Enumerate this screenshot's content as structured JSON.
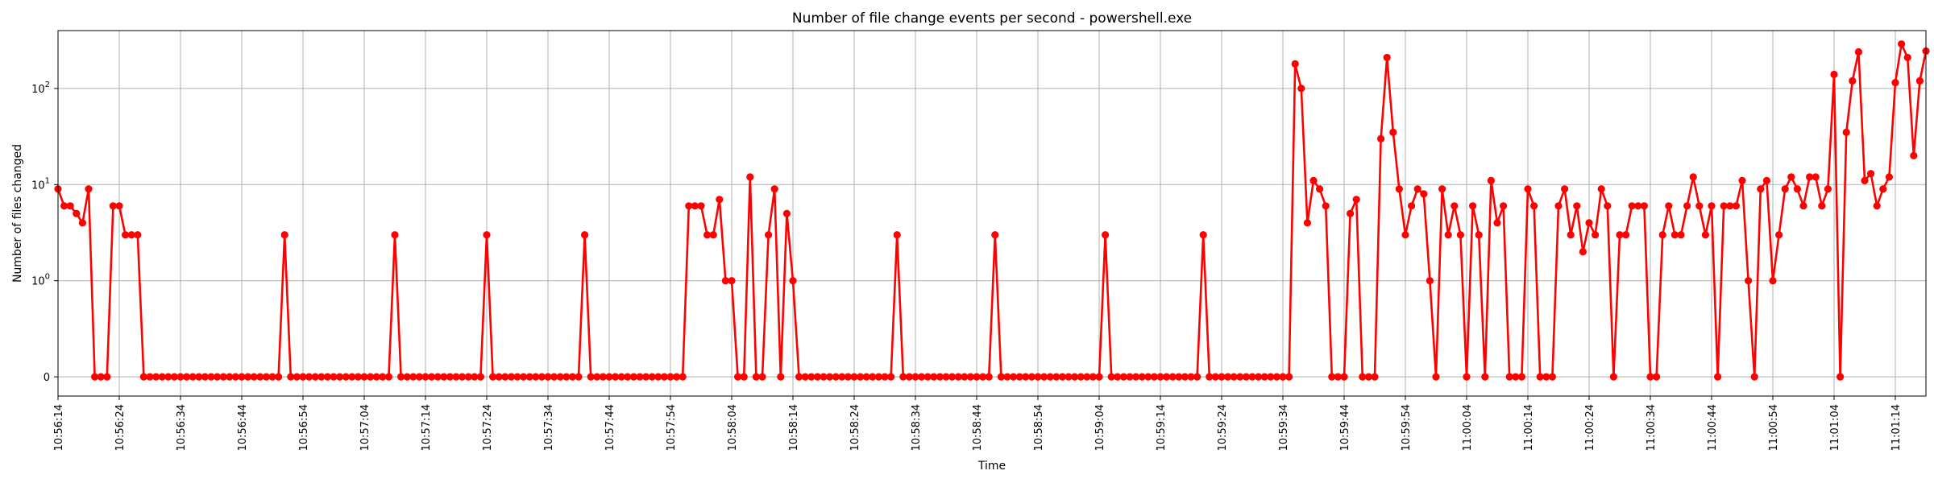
{
  "chart_data": {
    "type": "line",
    "title": "Number of file change events per second - powershell.exe",
    "xlabel": "Time",
    "ylabel": "Number of files changed",
    "yscale": "symlog",
    "y_linthresh": 1,
    "ylim": [
      -0.2,
      400
    ],
    "y_ticks": [
      {
        "value": 0,
        "label": "0"
      },
      {
        "value": 1,
        "label": "10^0"
      },
      {
        "value": 10,
        "label": "10^1"
      },
      {
        "value": 100,
        "label": "10^2"
      }
    ],
    "x_ticks": [
      "10:56:14",
      "10:56:24",
      "10:56:34",
      "10:56:44",
      "10:56:54",
      "10:57:04",
      "10:57:14",
      "10:57:24",
      "10:57:34",
      "10:57:44",
      "10:57:54",
      "10:58:04",
      "10:58:14",
      "10:58:24",
      "10:58:34",
      "10:58:44",
      "10:58:54",
      "10:59:04",
      "10:59:14",
      "10:59:24",
      "10:59:34",
      "10:59:44",
      "10:59:54",
      "11:00:04",
      "11:00:14",
      "11:00:24",
      "11:00:34",
      "11:00:44",
      "11:00:54",
      "11:01:04",
      "11:01:14"
    ],
    "x_start": "10:56:14",
    "x_step_seconds": 1,
    "grid": true,
    "series": [
      {
        "color": "#ff0000",
        "marker": "circle",
        "values": [
          9,
          6,
          6,
          5,
          4,
          9,
          0,
          0,
          0,
          6,
          6,
          3,
          3,
          3,
          0,
          0,
          0,
          0,
          0,
          0,
          0,
          0,
          0,
          0,
          0,
          0,
          0,
          0,
          0,
          0,
          0,
          0,
          0,
          0,
          0,
          0,
          0,
          3,
          0,
          0,
          0,
          0,
          0,
          0,
          0,
          0,
          0,
          0,
          0,
          0,
          0,
          0,
          0,
          0,
          0,
          3,
          0,
          0,
          0,
          0,
          0,
          0,
          0,
          0,
          0,
          0,
          0,
          0,
          0,
          0,
          3,
          0,
          0,
          0,
          0,
          0,
          0,
          0,
          0,
          0,
          0,
          0,
          0,
          0,
          0,
          0,
          3,
          0,
          0,
          0,
          0,
          0,
          0,
          0,
          0,
          0,
          0,
          0,
          0,
          0,
          0,
          0,
          0,
          6,
          6,
          6,
          3,
          3,
          7,
          1,
          1,
          0,
          0,
          12,
          0,
          0,
          3,
          9,
          0,
          5,
          1,
          0,
          0,
          0,
          0,
          0,
          0,
          0,
          0,
          0,
          0,
          0,
          0,
          0,
          0,
          0,
          0,
          3,
          0,
          0,
          0,
          0,
          0,
          0,
          0,
          0,
          0,
          0,
          0,
          0,
          0,
          0,
          0,
          3,
          0,
          0,
          0,
          0,
          0,
          0,
          0,
          0,
          0,
          0,
          0,
          0,
          0,
          0,
          0,
          0,
          0,
          3,
          0,
          0,
          0,
          0,
          0,
          0,
          0,
          0,
          0,
          0,
          0,
          0,
          0,
          0,
          0,
          3,
          0,
          0,
          0,
          0,
          0,
          0,
          0,
          0,
          0,
          0,
          0,
          0,
          0,
          0,
          180,
          100,
          4,
          11,
          9,
          6,
          0,
          0,
          0,
          5,
          7,
          0,
          0,
          0,
          30,
          210,
          35,
          9,
          3,
          6,
          9,
          8,
          1,
          0,
          9,
          3,
          6,
          3,
          0,
          6,
          3,
          0,
          11,
          4,
          6,
          0,
          0,
          0,
          9,
          6,
          0,
          0,
          0,
          6,
          9,
          3,
          6,
          2,
          4,
          3,
          9,
          6,
          0,
          3,
          3,
          6,
          6,
          6,
          0,
          0,
          3,
          6,
          3,
          3,
          6,
          12,
          6,
          3,
          6,
          0,
          6,
          6,
          6,
          11,
          1,
          0,
          9,
          11,
          1,
          3,
          9,
          12,
          9,
          6,
          12,
          12,
          6,
          9,
          140,
          0,
          35,
          120,
          240,
          11,
          13,
          6,
          9,
          12,
          115,
          290,
          210,
          20,
          120,
          245
        ]
      }
    ]
  }
}
